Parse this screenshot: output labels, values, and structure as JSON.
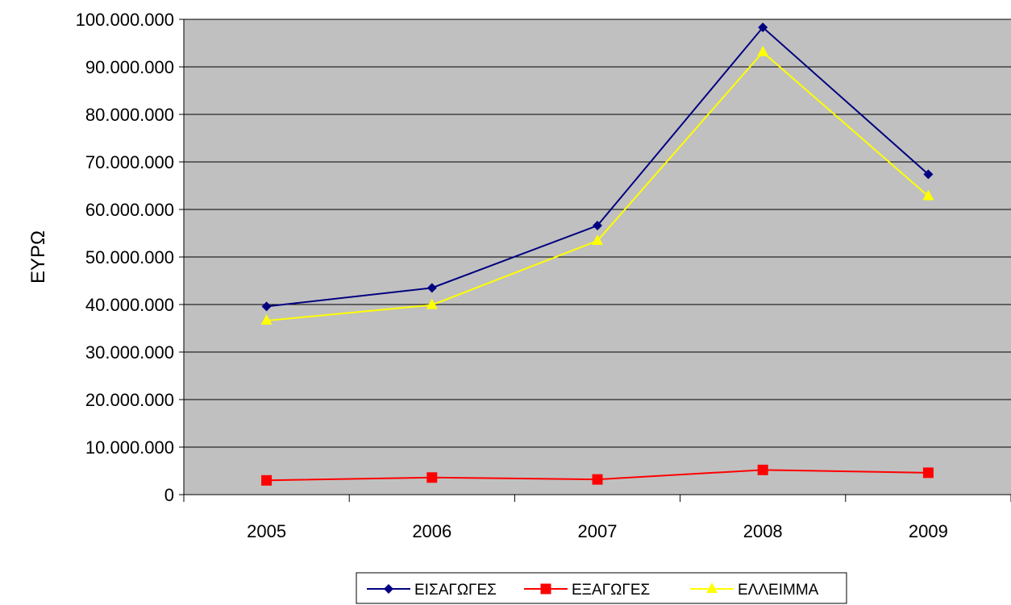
{
  "chart_data": {
    "type": "line",
    "title": "",
    "xlabel": "",
    "ylabel": "ΕΥΡΩ",
    "categories": [
      "2005",
      "2006",
      "2007",
      "2008",
      "2009"
    ],
    "ylim": [
      0,
      100000000
    ],
    "y_tick_labels": [
      "0",
      "10.000.000",
      "20.000.000",
      "30.000.000",
      "40.000.000",
      "50.000.000",
      "60.000.000",
      "70.000.000",
      "80.000.000",
      "90.000.000",
      "100.000.000"
    ],
    "grid": "horizontal",
    "plot_background": "#c0c0c0",
    "legend_position": "bottom",
    "series": [
      {
        "name": "ΕΙΣΑΓΩΓΕΣ",
        "color": "#000080",
        "marker": "diamond",
        "values": [
          39600000,
          43500000,
          56600000,
          98300000,
          67400000
        ]
      },
      {
        "name": "ΕΞΑΓΩΓΕΣ",
        "color": "#ff0000",
        "marker": "square",
        "values": [
          3000000,
          3600000,
          3200000,
          5200000,
          4600000
        ]
      },
      {
        "name": "ΕΛΛΕΙΜΜΑ",
        "color": "#ffff00",
        "marker": "triangle",
        "values": [
          36600000,
          39900000,
          53400000,
          93100000,
          62800000
        ]
      }
    ]
  }
}
